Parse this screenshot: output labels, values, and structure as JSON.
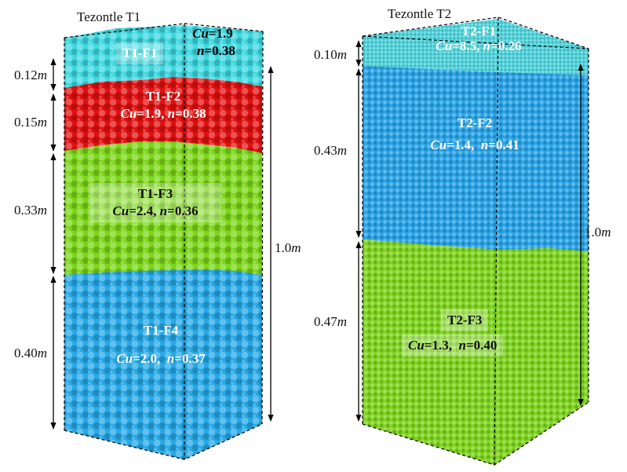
{
  "columns": [
    {
      "title": "Tezontle T1",
      "total_height": "1.0",
      "layers": [
        {
          "name": "T1-F1",
          "cu": "1.9",
          "n": "0.38",
          "thickness": "0.12",
          "color": "#3fd8e0"
        },
        {
          "name": "T1-F2",
          "cu": "1.9",
          "n": "0.38",
          "thickness": "0.15",
          "color": "#e01010"
        },
        {
          "name": "T1-F3",
          "cu": "2.4",
          "n": "0.36",
          "thickness": "0.33",
          "color": "#7cd61a"
        },
        {
          "name": "T1-F4",
          "cu": "2.0",
          "n": "0.37",
          "thickness": "0.40",
          "color": "#27a8e6"
        }
      ]
    },
    {
      "title": "Tezontle T2",
      "total_height": "1.0",
      "layers": [
        {
          "name": "T2-F1",
          "cu": "8.5",
          "n": "0.26",
          "thickness": "0.10",
          "color": "#4fd2da"
        },
        {
          "name": "T2-F2",
          "cu": "1.4",
          "n": "0.41",
          "thickness": "0.43",
          "color": "#2aa3e6"
        },
        {
          "name": "T2-F3",
          "cu": "1.3",
          "n": "0.40",
          "thickness": "0.47",
          "color": "#7fd420"
        }
      ]
    }
  ],
  "symbols": {
    "cu": "Cu",
    "n": "n",
    "unit": "m",
    "eq": "="
  }
}
